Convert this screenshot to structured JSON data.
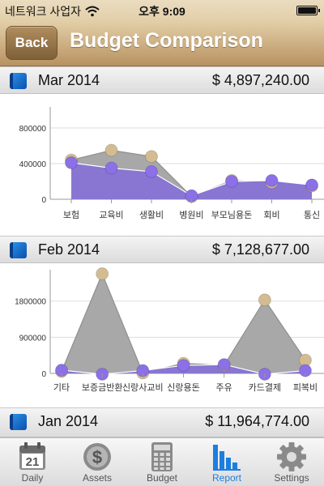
{
  "status_bar": {
    "carrier": "네트워크 사업자",
    "time": "오후 9:09",
    "battery_level": 1.0
  },
  "nav": {
    "back_label": "Back",
    "title": "Budget Comparison"
  },
  "sections": [
    {
      "month": "Mar 2014",
      "total": "$ 4,897,240.00"
    },
    {
      "month": "Feb 2014",
      "total": "$ 7,128,677.00"
    },
    {
      "month": "Jan 2014",
      "total": "$ 11,964,774.00"
    }
  ],
  "chart_data": [
    {
      "type": "area",
      "ylim": [
        0,
        1000000
      ],
      "yticks": [
        0,
        400000,
        800000
      ],
      "ytick_labels": [
        "0",
        "400000",
        "800000"
      ],
      "categories": [
        "보험",
        "교육비",
        "생활비",
        "병원비",
        "부모님용돈",
        "회비",
        "통신"
      ],
      "category_labels": [
        "보험",
        "교육비",
        "생활비",
        "병원비",
        "부모님용돈",
        "회비",
        "통신"
      ],
      "series": [
        {
          "values": [
            440000,
            550000,
            480000,
            30000,
            210000,
            190000,
            150000
          ],
          "color": "#a3a3a3",
          "marker": "#d4bc92"
        },
        {
          "values": [
            410000,
            350000,
            310000,
            40000,
            200000,
            210000,
            160000
          ],
          "color": "#8470d6",
          "marker": "#8c70e8"
        }
      ]
    },
    {
      "type": "area",
      "ylim": [
        0,
        2500000
      ],
      "yticks": [
        0,
        900000,
        1800000
      ],
      "ytick_labels": [
        "0",
        "900000",
        "1800000"
      ],
      "categories": [
        "기타",
        "보증금반환",
        "신랑사교비",
        "신랑용돈",
        "주유",
        "카드결제",
        "피복비"
      ],
      "category_labels": [
        "기타",
        "보증금반환",
        "신랑사교비",
        "신랑용돈",
        "주유",
        "카드결제",
        "피복비"
      ],
      "series": [
        {
          "values": [
            50000,
            2480000,
            10000,
            250000,
            200000,
            1830000,
            330000
          ],
          "color": "#a3a3a3",
          "marker": "#d4bc92"
        },
        {
          "values": [
            80000,
            -20000,
            70000,
            200000,
            220000,
            -20000,
            70000
          ],
          "color": "#8470d6",
          "marker": "#8c70e8"
        }
      ]
    }
  ],
  "tabs": [
    {
      "label": "Daily",
      "icon": "calendar-icon",
      "date": "21"
    },
    {
      "label": "Assets",
      "icon": "dollar-coin-icon",
      "symbol": "$"
    },
    {
      "label": "Budget",
      "icon": "calculator-icon"
    },
    {
      "label": "Report",
      "icon": "bar-chart-icon",
      "active": true
    },
    {
      "label": "Settings",
      "icon": "gear-icon"
    }
  ]
}
